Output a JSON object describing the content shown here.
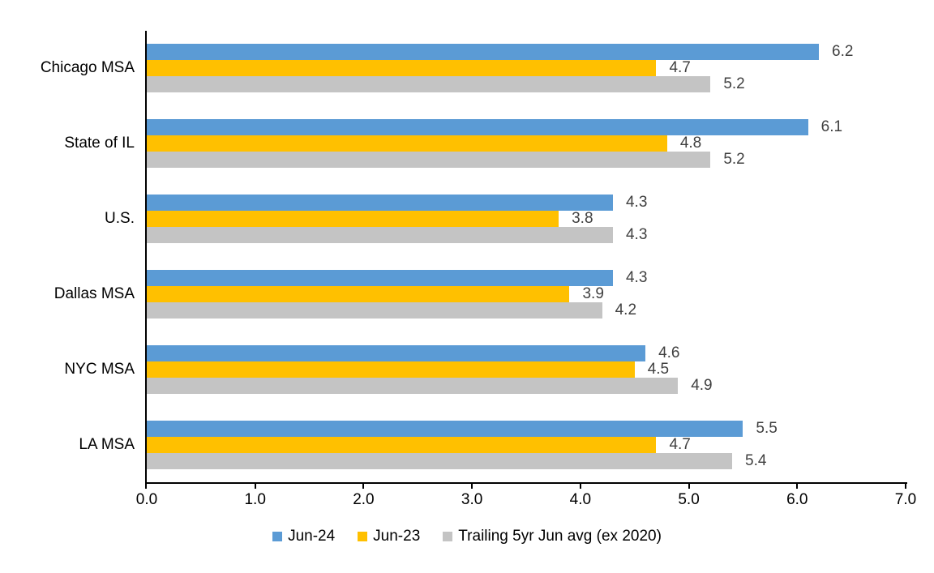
{
  "chart_data": {
    "type": "bar",
    "orientation": "horizontal",
    "title": "",
    "xlabel": "",
    "ylabel": "",
    "categories": [
      "Chicago MSA",
      "State of IL",
      "U.S.",
      "Dallas MSA",
      "NYC MSA",
      "LA MSA"
    ],
    "series": [
      {
        "name": "Jun-24",
        "color": "#5B9BD5",
        "values": [
          6.2,
          6.1,
          4.3,
          4.3,
          4.6,
          5.5
        ]
      },
      {
        "name": "Jun-23",
        "color": "#FFC000",
        "values": [
          4.7,
          4.8,
          3.8,
          3.9,
          4.5,
          4.7
        ]
      },
      {
        "name": "Trailing 5yr Jun avg (ex 2020)",
        "color": "#C4C4C4",
        "values": [
          5.2,
          5.2,
          4.3,
          4.2,
          4.9,
          5.4
        ]
      }
    ],
    "xlim": [
      0,
      7
    ],
    "x_tick_labels": [
      "0.0",
      "1.0",
      "2.0",
      "3.0",
      "4.0",
      "5.0",
      "6.0",
      "7.0"
    ],
    "value_labels_shown": true,
    "value_label_color": "#404040",
    "axis_color": "#000000",
    "legend_position": "bottom",
    "grid": false
  }
}
